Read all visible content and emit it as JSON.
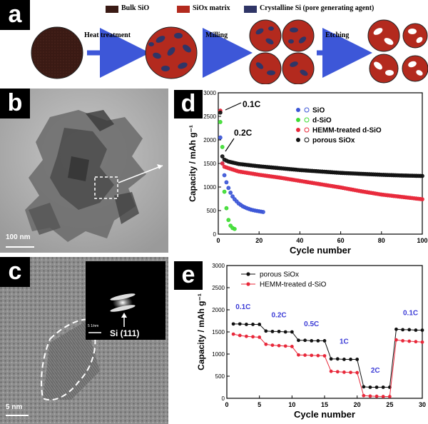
{
  "panel_a": {
    "tag": "a",
    "legend": [
      {
        "label": "Bulk SiO",
        "color": "#3a1a14"
      },
      {
        "label": "SiOx matrix",
        "color": "#b32a1e"
      },
      {
        "label": "Crystalline Si (pore generating agent)",
        "color": "#2f3566"
      }
    ],
    "steps": [
      "Heat treatment",
      "Milling",
      "Etching"
    ]
  },
  "panel_b": {
    "tag": "b",
    "scale": "100 nm"
  },
  "panel_c": {
    "tag": "c",
    "scale": "5 nm",
    "inset_scale": "5 1/nm",
    "inset_label": "Si (111)"
  },
  "panel_d": {
    "tag": "d",
    "chart_data": {
      "type": "scatter",
      "xlabel": "Cycle number",
      "ylabel": "Capacity / mAh g⁻¹",
      "xlim": [
        0,
        100
      ],
      "ylim": [
        0,
        3000
      ],
      "xticks": [
        0,
        20,
        40,
        60,
        80,
        100
      ],
      "yticks": [
        0,
        500,
        1000,
        1500,
        2000,
        2500,
        3000
      ],
      "legend_position": "top-right",
      "annotations": [
        "0.1C",
        "0.2C"
      ],
      "series": [
        {
          "name": "SiO",
          "color": "#3b55d6",
          "x": [
            1,
            2,
            3,
            4,
            5,
            6,
            7,
            8,
            10,
            12,
            14,
            16,
            18,
            20,
            22
          ],
          "y": [
            2050,
            1500,
            1250,
            1100,
            980,
            880,
            800,
            740,
            650,
            590,
            550,
            520,
            500,
            485,
            470
          ]
        },
        {
          "name": "d-SiO",
          "color": "#3ddc32",
          "x": [
            1,
            2,
            3,
            4,
            5,
            6,
            7,
            8
          ],
          "y": [
            2380,
            1850,
            900,
            550,
            300,
            180,
            130,
            110
          ]
        },
        {
          "name": "HEMM-treated d-SiO",
          "color": "#e8283a",
          "x": [
            1,
            2,
            3,
            5,
            10,
            20,
            30,
            40,
            50,
            60,
            70,
            80,
            90,
            100
          ],
          "y": [
            2620,
            1500,
            1430,
            1400,
            1330,
            1260,
            1200,
            1130,
            1060,
            990,
            910,
            840,
            790,
            740
          ]
        },
        {
          "name": "porous SiOx",
          "color": "#111111",
          "x": [
            1,
            2,
            3,
            5,
            10,
            20,
            30,
            40,
            50,
            60,
            70,
            80,
            90,
            100
          ],
          "y": [
            2580,
            1650,
            1580,
            1540,
            1490,
            1440,
            1400,
            1360,
            1330,
            1300,
            1280,
            1260,
            1245,
            1235
          ]
        }
      ]
    }
  },
  "panel_e": {
    "tag": "e",
    "chart_data": {
      "type": "line",
      "xlabel": "Cycle number",
      "ylabel": "Capacity / mAh g⁻¹",
      "xlim": [
        0,
        30
      ],
      "ylim": [
        0,
        3000
      ],
      "xticks": [
        0,
        5,
        10,
        15,
        20,
        25,
        30
      ],
      "yticks": [
        0,
        500,
        1000,
        1500,
        2000,
        2500,
        3000
      ],
      "legend_position": "top-left",
      "rate_labels": [
        {
          "text": "0.1C",
          "x": 2.5,
          "y": 2020
        },
        {
          "text": "0.2C",
          "x": 8,
          "y": 1830
        },
        {
          "text": "0.5C",
          "x": 13,
          "y": 1630
        },
        {
          "text": "1C",
          "x": 18,
          "y": 1230
        },
        {
          "text": "2C",
          "x": 22.8,
          "y": 580
        },
        {
          "text": "0.1C",
          "x": 28.2,
          "y": 1880
        }
      ],
      "series": [
        {
          "name": "porous SiOx",
          "color": "#111111",
          "x": [
            1,
            2,
            3,
            4,
            5,
            6,
            7,
            8,
            9,
            10,
            11,
            12,
            13,
            14,
            15,
            16,
            17,
            18,
            19,
            20,
            21,
            22,
            23,
            24,
            25,
            26,
            27,
            28,
            29,
            30
          ],
          "y": [
            1680,
            1680,
            1670,
            1670,
            1670,
            1520,
            1510,
            1510,
            1500,
            1500,
            1310,
            1310,
            1300,
            1300,
            1300,
            890,
            890,
            880,
            880,
            880,
            260,
            250,
            250,
            250,
            250,
            1560,
            1550,
            1550,
            1540,
            1540
          ]
        },
        {
          "name": "HEMM-treated d-SiO",
          "color": "#e8283a",
          "x": [
            1,
            2,
            3,
            4,
            5,
            6,
            7,
            8,
            9,
            10,
            11,
            12,
            13,
            14,
            15,
            16,
            17,
            18,
            19,
            20,
            21,
            22,
            23,
            24,
            25,
            26,
            27,
            28,
            29,
            30
          ],
          "y": [
            1450,
            1420,
            1400,
            1390,
            1380,
            1220,
            1200,
            1190,
            1180,
            1170,
            980,
            975,
            970,
            965,
            960,
            610,
            600,
            590,
            585,
            580,
            60,
            50,
            45,
            40,
            40,
            1320,
            1300,
            1290,
            1280,
            1270
          ]
        }
      ]
    }
  }
}
